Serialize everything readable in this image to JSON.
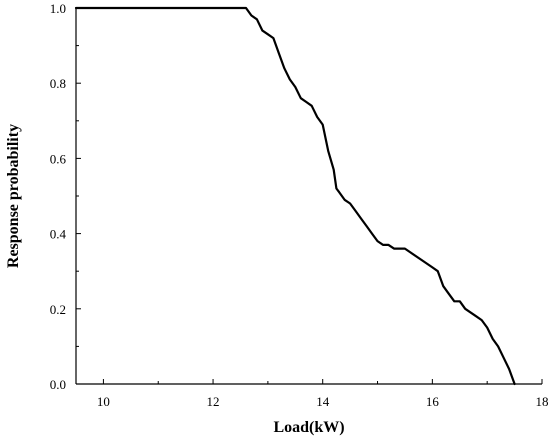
{
  "chart_data": {
    "type": "line",
    "title": "",
    "xlabel": "Load(kW)",
    "ylabel": "Response probability",
    "xlim": [
      9.5,
      18
    ],
    "ylim": [
      0,
      1
    ],
    "x_ticks": [
      10,
      12,
      14,
      16,
      18
    ],
    "y_ticks": [
      0.0,
      0.2,
      0.4,
      0.6,
      0.8,
      1.0
    ],
    "x_tick_labels": [
      "10",
      "12",
      "14",
      "16",
      "18"
    ],
    "y_tick_labels": [
      "0.0",
      "0.2",
      "0.4",
      "0.6",
      "0.8",
      "1.0"
    ],
    "grid": false,
    "line_color": "#000000",
    "series": [
      {
        "x": [
          9.5,
          12.6,
          12.7,
          12.8,
          12.9,
          13.0,
          13.1,
          13.2,
          13.3,
          13.4,
          13.5,
          13.6,
          13.7,
          13.8,
          13.9,
          14.0,
          14.1,
          14.2,
          14.25,
          14.3,
          14.4,
          14.5,
          14.6,
          14.7,
          14.8,
          14.9,
          15.0,
          15.1,
          15.2,
          15.3,
          15.4,
          15.5,
          15.6,
          15.8,
          16.0,
          16.1,
          16.2,
          16.3,
          16.4,
          16.5,
          16.6,
          16.8,
          16.9,
          17.0,
          17.1,
          17.2,
          17.3,
          17.4,
          17.5
        ],
        "y": [
          1.0,
          1.0,
          0.98,
          0.97,
          0.94,
          0.93,
          0.92,
          0.88,
          0.84,
          0.81,
          0.79,
          0.76,
          0.75,
          0.74,
          0.71,
          0.69,
          0.62,
          0.57,
          0.52,
          0.51,
          0.49,
          0.48,
          0.46,
          0.44,
          0.42,
          0.4,
          0.38,
          0.37,
          0.37,
          0.36,
          0.36,
          0.36,
          0.35,
          0.33,
          0.31,
          0.3,
          0.26,
          0.24,
          0.22,
          0.22,
          0.2,
          0.18,
          0.17,
          0.15,
          0.12,
          0.1,
          0.07,
          0.04,
          0.0
        ]
      }
    ]
  }
}
